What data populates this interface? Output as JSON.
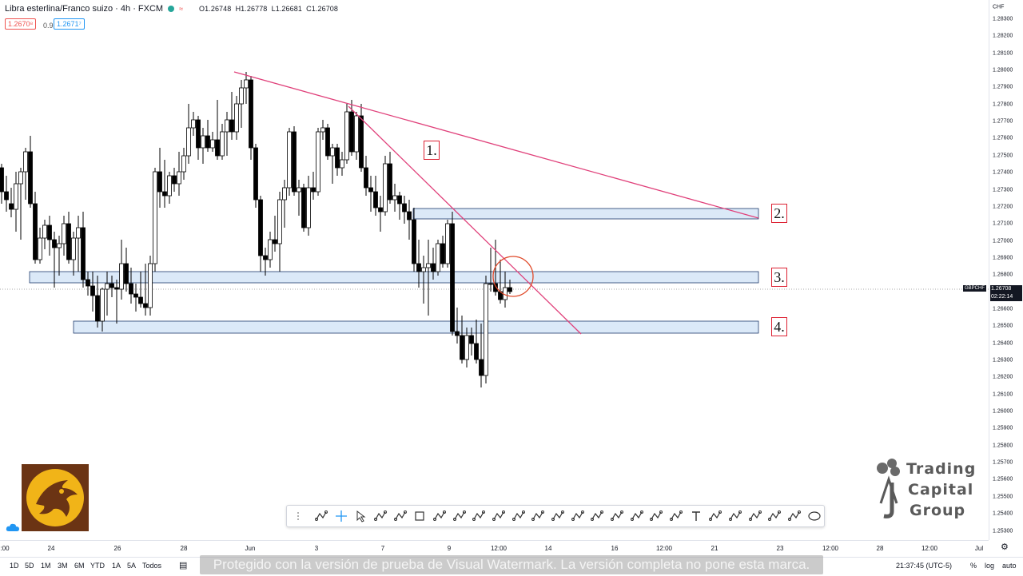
{
  "header": {
    "symbol_title": "Libra esterlina/Franco suizo · 4h · FXCM",
    "ohlc": {
      "open": "O1.26748",
      "high": "H1.26778",
      "low": "L1.26681",
      "close": "C1.26708"
    },
    "sell_price": "1.2670⁸",
    "spread": "0.9",
    "buy_price": "1.2671⁷",
    "mini_icon": "≈"
  },
  "price_axis": {
    "currency": "CHF",
    "labels": [
      "1.28300",
      "1.28200",
      "1.28100",
      "1.28000",
      "1.27900",
      "1.27800",
      "1.27700",
      "1.27600",
      "1.27500",
      "1.27400",
      "1.27300",
      "1.27200",
      "1.27100",
      "1.27000",
      "1.26900",
      "1.26800",
      "1.26600",
      "1.26500",
      "1.26400",
      "1.26300",
      "1.26200",
      "1.26100",
      "1.26000",
      "1.25900",
      "1.25800",
      "1.25700",
      "1.25600",
      "1.25500",
      "1.25400",
      "1.25300"
    ],
    "current_price": "1.26708",
    "countdown": "02:22:14",
    "symbol_tag": "GBPCHF"
  },
  "time_axis": {
    "labels": [
      ":00",
      "24",
      "26",
      "28",
      "Jun",
      "3",
      "7",
      "9",
      "12:00",
      "14",
      "16",
      "12:00",
      "21",
      "23",
      "12:00",
      "28",
      "12:00",
      "Jul"
    ],
    "clock": "21:37:45 (UTC-5)",
    "pct": "%",
    "log": "log",
    "auto": "auto"
  },
  "timeframes": [
    "1D",
    "5D",
    "1M",
    "3M",
    "6M",
    "YTD",
    "1A",
    "5A",
    "Todos"
  ],
  "annotations": {
    "label1": "1.",
    "label2": "2.",
    "label3": "3.",
    "label4": "4."
  },
  "watermark": "Protegido con la versión de prueba de Visual Watermark. La versión completa no pone esta marca.",
  "brand": {
    "line1": "Trading",
    "line2": "Capital",
    "line3": "Group"
  },
  "toolbar_icons": [
    "drag-handle-icon",
    "horizontal-lines-icon",
    "crosshair-icon",
    "cursor-icon",
    "fib-icon",
    "pattern-icon",
    "rectangle-icon",
    "zigzag-icon",
    "abcd-icon",
    "xabcd-icon",
    "wave-icon",
    "abc-icon",
    "wxy-icon",
    "path-icon",
    "trendline-icon",
    "horizontal-ray-icon",
    "ray-icon",
    "brush-icon",
    "network-icon",
    "measure-icon",
    "text-icon",
    "forecast-icon",
    "price-range-icon",
    "triangle-icon",
    "line-icon",
    "head-shoulders-icon",
    "ellipse-icon"
  ],
  "colors": {
    "trend": "#e0407a",
    "zone_fill": "#dbe9f8",
    "zone_border": "#1e3a6d",
    "up_candle": "#ffffff",
    "down_candle": "#000000",
    "circle": "#e04a2a"
  }
}
